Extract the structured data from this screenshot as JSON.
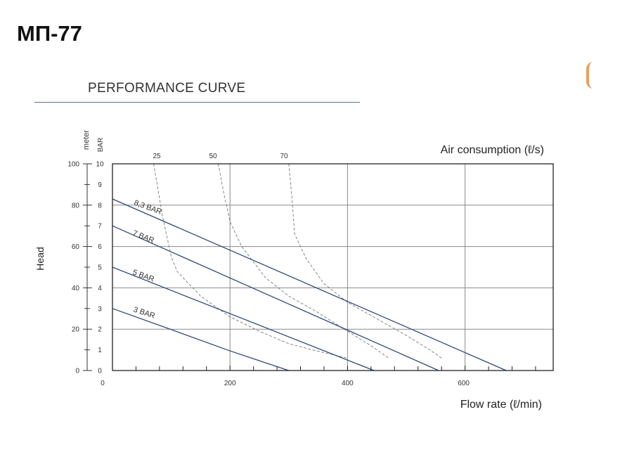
{
  "model_title": "МП-77",
  "section_title": "PERFORMANCE CURVE",
  "chart_data": {
    "type": "line",
    "xlabel": "Flow rate (ℓ/min)",
    "ylabel": "Head",
    "y_unit_meter": "meter",
    "y_unit_bar": "BAR",
    "top_axis_label": "Air consumption (ℓ/s)",
    "xlim": [
      0,
      750
    ],
    "ylim_meter": [
      0,
      100
    ],
    "ylim_bar": [
      0,
      10
    ],
    "x_ticks": [
      0,
      200,
      400,
      600
    ],
    "x_minor_ticks": [
      40,
      80,
      120,
      160,
      240,
      280,
      320,
      360,
      440,
      480,
      520,
      560,
      640,
      680,
      720
    ],
    "y_meter_ticks": [
      0,
      20,
      40,
      60,
      80,
      100
    ],
    "y_bar_ticks": [
      0,
      1,
      2,
      3,
      4,
      5,
      6,
      7,
      8,
      9,
      10
    ],
    "grid_x": [
      200,
      400,
      600
    ],
    "grid_y_bar": [
      2,
      4,
      6,
      8,
      10
    ],
    "series": [
      {
        "name": "8,3 BAR",
        "x": [
          0,
          670
        ],
        "y": [
          8.3,
          0
        ]
      },
      {
        "name": "7 BAR",
        "x": [
          0,
          555
        ],
        "y": [
          7.0,
          0
        ]
      },
      {
        "name": "5 BAR",
        "x": [
          0,
          445
        ],
        "y": [
          5.0,
          0
        ]
      },
      {
        "name": "3 BAR",
        "x": [
          0,
          100,
          200,
          300
        ],
        "y": [
          3.0,
          1.98,
          0.95,
          0
        ]
      }
    ],
    "air_consumption_curves": [
      {
        "label": "25",
        "x": [
          70,
          85,
          100,
          110,
          150,
          200,
          250,
          300,
          340,
          400
        ],
        "y": [
          10.0,
          7.5,
          5.5,
          4.8,
          3.6,
          2.6,
          1.9,
          1.3,
          1.0,
          0.6
        ]
      },
      {
        "label": "50",
        "x": [
          180,
          190,
          200,
          220,
          260,
          300,
          350,
          400,
          440,
          470
        ],
        "y": [
          10.0,
          8.5,
          7.2,
          6.0,
          4.5,
          3.6,
          2.8,
          1.9,
          1.2,
          0.6
        ]
      },
      {
        "label": "70",
        "x": [
          300,
          305,
          310,
          330,
          360,
          400,
          450,
          500,
          540,
          560
        ],
        "y": [
          10.0,
          8.5,
          6.6,
          5.4,
          4.2,
          3.3,
          2.5,
          1.7,
          1.0,
          0.6
        ]
      }
    ]
  }
}
